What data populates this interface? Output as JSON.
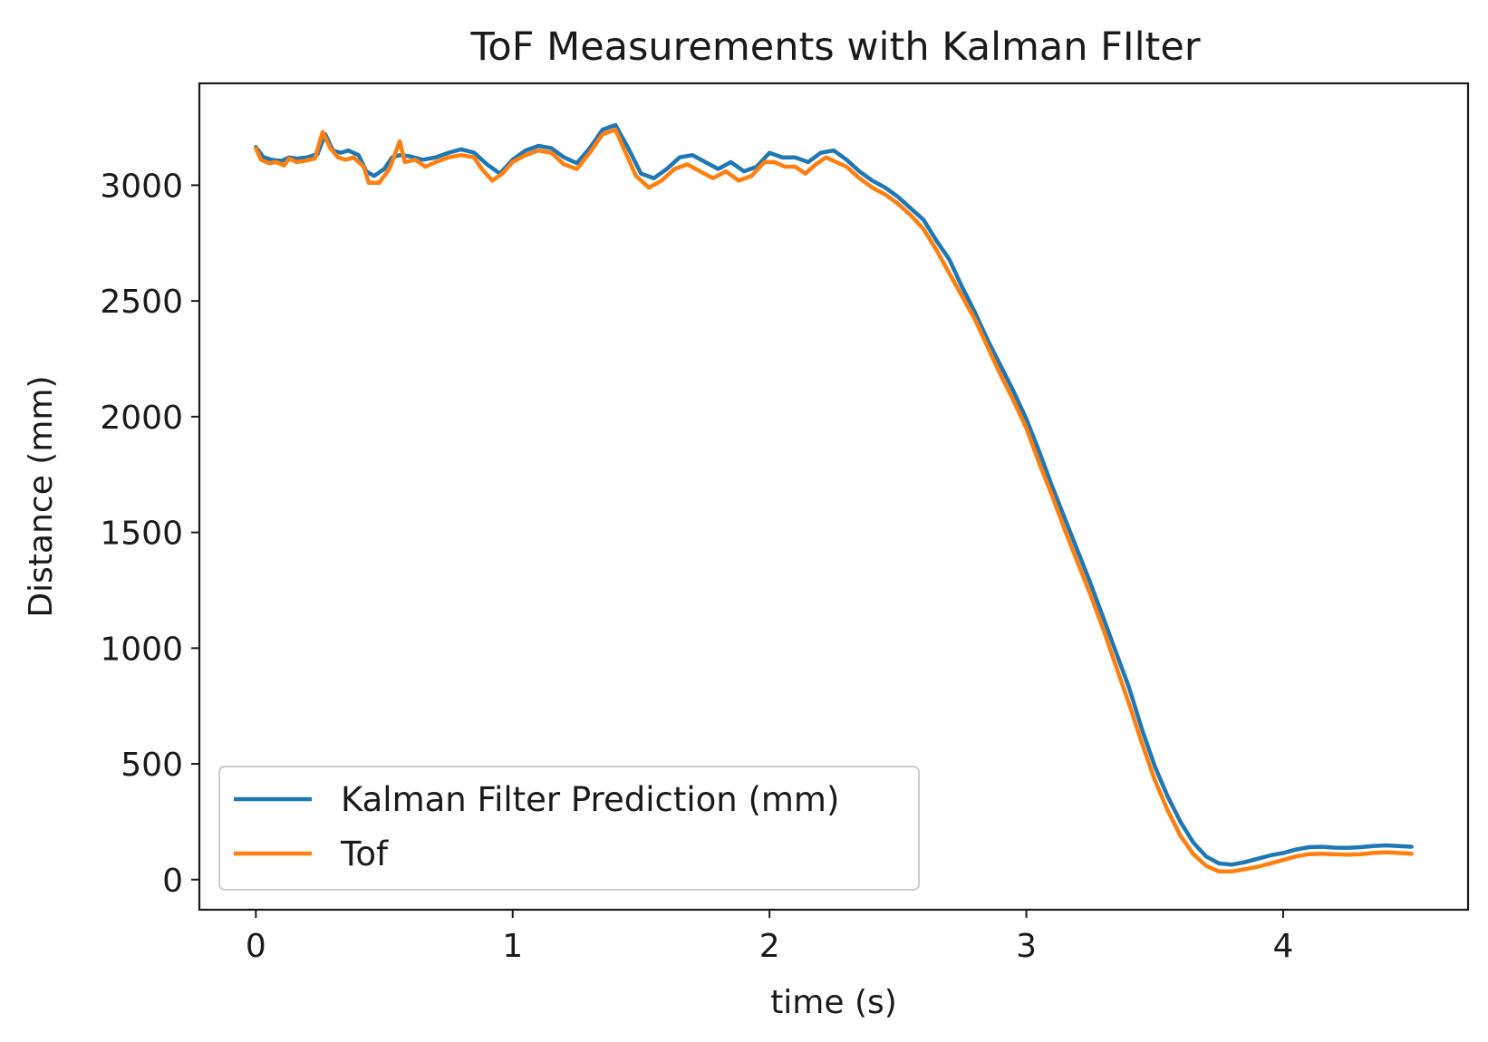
{
  "chart_data": {
    "type": "line",
    "title": "ToF Measurements with Kalman FIlter",
    "xlabel": "time (s)",
    "ylabel": "Distance (mm)",
    "xlim": [
      -0.22,
      4.72
    ],
    "ylim": [
      -130,
      3440
    ],
    "x_ticks": [
      0,
      1,
      2,
      3,
      4
    ],
    "x_tick_labels": [
      "0",
      "1",
      "2",
      "3",
      "4"
    ],
    "y_ticks": [
      0,
      500,
      1000,
      1500,
      2000,
      2500,
      3000
    ],
    "y_tick_labels": [
      "0",
      "500",
      "1000",
      "1500",
      "2000",
      "2500",
      "3000"
    ],
    "grid": false,
    "legend_position": "lower-left",
    "series": [
      {
        "name": "Kalman Filter Prediction (mm)",
        "color": "#1f77b4",
        "points": [
          [
            0,
            3165
          ],
          [
            0.03,
            3120
          ],
          [
            0.06,
            3110
          ],
          [
            0.1,
            3105
          ],
          [
            0.13,
            3120
          ],
          [
            0.16,
            3115
          ],
          [
            0.2,
            3120
          ],
          [
            0.24,
            3135
          ],
          [
            0.27,
            3220
          ],
          [
            0.3,
            3150
          ],
          [
            0.33,
            3140
          ],
          [
            0.36,
            3150
          ],
          [
            0.4,
            3130
          ],
          [
            0.43,
            3060
          ],
          [
            0.46,
            3040
          ],
          [
            0.5,
            3070
          ],
          [
            0.53,
            3120
          ],
          [
            0.56,
            3130
          ],
          [
            0.6,
            3125
          ],
          [
            0.65,
            3110
          ],
          [
            0.7,
            3120
          ],
          [
            0.75,
            3140
          ],
          [
            0.8,
            3155
          ],
          [
            0.85,
            3140
          ],
          [
            0.9,
            3090
          ],
          [
            0.95,
            3050
          ],
          [
            1.0,
            3110
          ],
          [
            1.05,
            3150
          ],
          [
            1.1,
            3170
          ],
          [
            1.15,
            3160
          ],
          [
            1.2,
            3120
          ],
          [
            1.25,
            3095
          ],
          [
            1.3,
            3160
          ],
          [
            1.35,
            3240
          ],
          [
            1.4,
            3260
          ],
          [
            1.45,
            3160
          ],
          [
            1.5,
            3050
          ],
          [
            1.55,
            3030
          ],
          [
            1.6,
            3070
          ],
          [
            1.65,
            3120
          ],
          [
            1.7,
            3130
          ],
          [
            1.75,
            3100
          ],
          [
            1.8,
            3070
          ],
          [
            1.85,
            3100
          ],
          [
            1.9,
            3060
          ],
          [
            1.95,
            3080
          ],
          [
            2.0,
            3140
          ],
          [
            2.05,
            3120
          ],
          [
            2.1,
            3120
          ],
          [
            2.15,
            3100
          ],
          [
            2.2,
            3140
          ],
          [
            2.25,
            3150
          ],
          [
            2.3,
            3110
          ],
          [
            2.35,
            3060
          ],
          [
            2.4,
            3020
          ],
          [
            2.45,
            2990
          ],
          [
            2.5,
            2950
          ],
          [
            2.55,
            2900
          ],
          [
            2.6,
            2850
          ],
          [
            2.65,
            2760
          ],
          [
            2.7,
            2680
          ],
          [
            2.75,
            2560
          ],
          [
            2.8,
            2450
          ],
          [
            2.85,
            2330
          ],
          [
            2.9,
            2220
          ],
          [
            2.95,
            2110
          ],
          [
            3.0,
            1990
          ],
          [
            3.05,
            1850
          ],
          [
            3.1,
            1700
          ],
          [
            3.15,
            1560
          ],
          [
            3.2,
            1420
          ],
          [
            3.25,
            1280
          ],
          [
            3.3,
            1130
          ],
          [
            3.35,
            980
          ],
          [
            3.4,
            830
          ],
          [
            3.45,
            650
          ],
          [
            3.5,
            490
          ],
          [
            3.55,
            360
          ],
          [
            3.6,
            250
          ],
          [
            3.65,
            160
          ],
          [
            3.7,
            100
          ],
          [
            3.75,
            70
          ],
          [
            3.8,
            65
          ],
          [
            3.85,
            75
          ],
          [
            3.9,
            90
          ],
          [
            3.95,
            105
          ],
          [
            4.0,
            115
          ],
          [
            4.05,
            130
          ],
          [
            4.1,
            140
          ],
          [
            4.15,
            142
          ],
          [
            4.2,
            138
          ],
          [
            4.25,
            137
          ],
          [
            4.3,
            140
          ],
          [
            4.35,
            145
          ],
          [
            4.4,
            148
          ],
          [
            4.45,
            145
          ],
          [
            4.5,
            142
          ]
        ]
      },
      {
        "name": "Tof",
        "color": "#ff7f0e",
        "points": [
          [
            0,
            3160
          ],
          [
            0.02,
            3110
          ],
          [
            0.05,
            3095
          ],
          [
            0.08,
            3100
          ],
          [
            0.11,
            3085
          ],
          [
            0.13,
            3115
          ],
          [
            0.16,
            3100
          ],
          [
            0.19,
            3105
          ],
          [
            0.23,
            3115
          ],
          [
            0.26,
            3230
          ],
          [
            0.29,
            3160
          ],
          [
            0.32,
            3120
          ],
          [
            0.35,
            3110
          ],
          [
            0.38,
            3120
          ],
          [
            0.42,
            3080
          ],
          [
            0.44,
            3010
          ],
          [
            0.48,
            3010
          ],
          [
            0.52,
            3070
          ],
          [
            0.56,
            3190
          ],
          [
            0.58,
            3100
          ],
          [
            0.62,
            3110
          ],
          [
            0.66,
            3080
          ],
          [
            0.7,
            3100
          ],
          [
            0.75,
            3120
          ],
          [
            0.8,
            3130
          ],
          [
            0.85,
            3120
          ],
          [
            0.88,
            3070
          ],
          [
            0.92,
            3020
          ],
          [
            0.96,
            3050
          ],
          [
            1.0,
            3100
          ],
          [
            1.05,
            3130
          ],
          [
            1.1,
            3150
          ],
          [
            1.15,
            3140
          ],
          [
            1.2,
            3090
          ],
          [
            1.25,
            3070
          ],
          [
            1.3,
            3140
          ],
          [
            1.35,
            3220
          ],
          [
            1.4,
            3240
          ],
          [
            1.44,
            3140
          ],
          [
            1.48,
            3040
          ],
          [
            1.53,
            2990
          ],
          [
            1.58,
            3020
          ],
          [
            1.63,
            3070
          ],
          [
            1.68,
            3090
          ],
          [
            1.73,
            3060
          ],
          [
            1.78,
            3030
          ],
          [
            1.83,
            3060
          ],
          [
            1.88,
            3020
          ],
          [
            1.93,
            3040
          ],
          [
            1.98,
            3100
          ],
          [
            2.02,
            3100
          ],
          [
            2.06,
            3080
          ],
          [
            2.1,
            3080
          ],
          [
            2.14,
            3050
          ],
          [
            2.18,
            3090
          ],
          [
            2.22,
            3120
          ],
          [
            2.26,
            3100
          ],
          [
            2.3,
            3080
          ],
          [
            2.35,
            3030
          ],
          [
            2.4,
            2990
          ],
          [
            2.45,
            2960
          ],
          [
            2.5,
            2920
          ],
          [
            2.55,
            2870
          ],
          [
            2.6,
            2810
          ],
          [
            2.65,
            2720
          ],
          [
            2.7,
            2620
          ],
          [
            2.75,
            2520
          ],
          [
            2.8,
            2420
          ],
          [
            2.85,
            2300
          ],
          [
            2.9,
            2180
          ],
          [
            2.95,
            2070
          ],
          [
            3.0,
            1950
          ],
          [
            3.05,
            1800
          ],
          [
            3.1,
            1660
          ],
          [
            3.15,
            1510
          ],
          [
            3.2,
            1370
          ],
          [
            3.25,
            1230
          ],
          [
            3.3,
            1080
          ],
          [
            3.35,
            920
          ],
          [
            3.4,
            760
          ],
          [
            3.45,
            590
          ],
          [
            3.5,
            430
          ],
          [
            3.55,
            300
          ],
          [
            3.6,
            190
          ],
          [
            3.65,
            110
          ],
          [
            3.7,
            60
          ],
          [
            3.75,
            35
          ],
          [
            3.8,
            35
          ],
          [
            3.85,
            45
          ],
          [
            3.9,
            55
          ],
          [
            3.95,
            70
          ],
          [
            4.0,
            85
          ],
          [
            4.05,
            100
          ],
          [
            4.1,
            110
          ],
          [
            4.15,
            112
          ],
          [
            4.2,
            110
          ],
          [
            4.25,
            108
          ],
          [
            4.3,
            110
          ],
          [
            4.35,
            115
          ],
          [
            4.4,
            118
          ],
          [
            4.45,
            115
          ],
          [
            4.5,
            112
          ]
        ]
      }
    ]
  }
}
